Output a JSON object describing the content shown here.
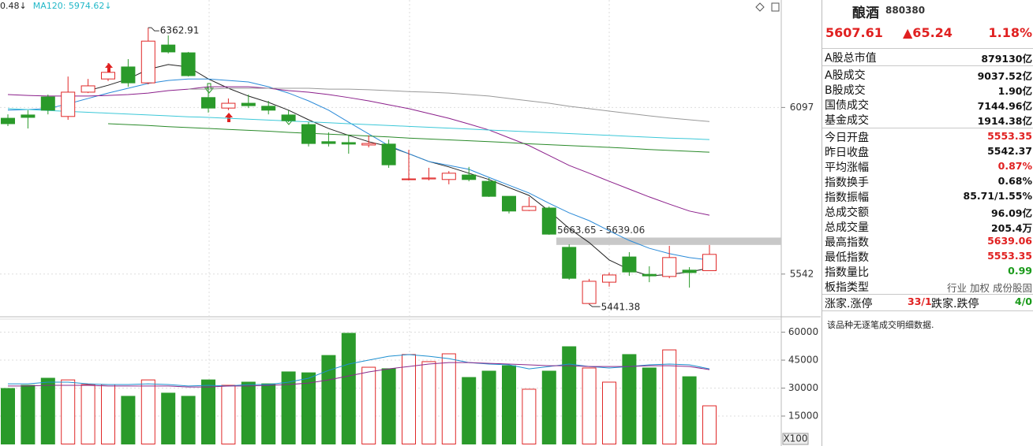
{
  "chart_data": [
    {
      "type": "candlestick",
      "legend_texts": [
        {
          "text": "0.48↓",
          "color": "#222222"
        },
        {
          "text": "MA120: 5974.62↓",
          "color": "#22b8c8"
        }
      ],
      "ylim": [
        5405,
        6455
      ],
      "yticks": [
        6097,
        5542
      ],
      "grid": true,
      "up_color": "#e02828",
      "down_color": "#2a9a2a",
      "candles": [
        {
          "open": 6061,
          "high": 6074,
          "low": 6035,
          "close": 6043
        },
        {
          "open": 6072,
          "high": 6088,
          "low": 6027,
          "close": 6064
        },
        {
          "open": 6132,
          "high": 6140,
          "low": 6074,
          "close": 6088
        },
        {
          "open": 6067,
          "high": 6200,
          "low": 6056,
          "close": 6148
        },
        {
          "open": 6148,
          "high": 6192,
          "low": 6145,
          "close": 6169
        },
        {
          "open": 6192,
          "high": 6245,
          "low": 6185,
          "close": 6214
        },
        {
          "open": 6232,
          "high": 6258,
          "low": 6166,
          "close": 6179
        },
        {
          "open": 6179,
          "high": 6362.91,
          "low": 6174,
          "close": 6318
        },
        {
          "open": 6305,
          "high": 6337,
          "low": 6277,
          "close": 6282
        },
        {
          "open": 6279,
          "high": 6282,
          "low": 6200,
          "close": 6203
        },
        {
          "open": 6130,
          "high": 6166,
          "low": 6080,
          "close": 6095
        },
        {
          "open": 6095,
          "high": 6127,
          "low": 6088,
          "close": 6111
        },
        {
          "open": 6111,
          "high": 6140,
          "low": 6095,
          "close": 6103
        },
        {
          "open": 6101,
          "high": 6119,
          "low": 6074,
          "close": 6088
        },
        {
          "open": 6072,
          "high": 6088,
          "low": 6048,
          "close": 6053
        },
        {
          "open": 6040,
          "high": 6048,
          "low": 5967,
          "close": 5977
        },
        {
          "open": 5983,
          "high": 6014,
          "low": 5967,
          "close": 5977
        },
        {
          "open": 5980,
          "high": 6004,
          "low": 5943,
          "close": 5975
        },
        {
          "open": 5972,
          "high": 6004,
          "low": 5964,
          "close": 5977
        },
        {
          "open": 5975,
          "high": 5990,
          "low": 5896,
          "close": 5906
        },
        {
          "open": 5857,
          "high": 5956,
          "low": 5854,
          "close": 5859
        },
        {
          "open": 5859,
          "high": 5896,
          "low": 5854,
          "close": 5862
        },
        {
          "open": 5857,
          "high": 5885,
          "low": 5841,
          "close": 5878
        },
        {
          "open": 5872,
          "high": 5899,
          "low": 5851,
          "close": 5857
        },
        {
          "open": 5851,
          "high": 5862,
          "low": 5799,
          "close": 5801
        },
        {
          "open": 5801,
          "high": 5801,
          "low": 5744,
          "close": 5752
        },
        {
          "open": 5754,
          "high": 5799,
          "low": 5752,
          "close": 5767
        },
        {
          "open": 5762,
          "high": 5767,
          "low": 5673,
          "close": 5675
        },
        {
          "open": 5631,
          "high": 5641,
          "low": 5523,
          "close": 5528
        },
        {
          "open": 5444,
          "high": 5526,
          "low": 5441.38,
          "close": 5518
        },
        {
          "open": 5515,
          "high": 5547,
          "low": 5500,
          "close": 5539
        },
        {
          "open": 5599,
          "high": 5615,
          "low": 5536,
          "close": 5549
        },
        {
          "open": 5541,
          "high": 5568,
          "low": 5515,
          "close": 5536
        },
        {
          "open": 5534,
          "high": 5636,
          "low": 5528,
          "close": 5597
        },
        {
          "open": 5555,
          "high": 5565,
          "low": 5497,
          "close": 5547
        },
        {
          "open": 5553.35,
          "high": 5639.06,
          "low": 5553.35,
          "close": 5607.61
        }
      ],
      "lines": [
        {
          "color": "#222222",
          "values": [
            null,
            null,
            null,
            null,
            6153,
            6171,
            6192,
            6224,
            6240,
            6232,
            6192,
            6161,
            6135,
            6114,
            6088,
            6056,
            6027,
            6004,
            5983,
            5967,
            5943,
            5917,
            5899,
            5878,
            5857,
            5830,
            5804,
            5752,
            5694,
            5647,
            5589,
            5557,
            5536,
            5541,
            5549,
            5562
          ]
        },
        {
          "color": "#2a8ad8",
          "values": [
            6088,
            6090,
            6093,
            6109,
            6127,
            6145,
            6161,
            6177,
            6187,
            6192,
            6192,
            6187,
            6182,
            6166,
            6145,
            6119,
            6088,
            6048,
            6009,
            5970,
            5943,
            5917,
            5904,
            5891,
            5864,
            5838,
            5812,
            5778,
            5746,
            5720,
            5686,
            5654,
            5628,
            5610,
            5597,
            5589
          ]
        },
        {
          "color": "#8b1f8b",
          "values": [
            6140,
            6137,
            6135,
            6135,
            6135,
            6137,
            6140,
            6145,
            6153,
            6158,
            6166,
            6166,
            6166,
            6161,
            6153,
            6148,
            6140,
            6130,
            6119,
            6106,
            6093,
            6077,
            6061,
            6042,
            6022,
            5996,
            5970,
            5937,
            5904,
            5878,
            5851,
            5825,
            5799,
            5775,
            5752,
            5738
          ]
        },
        {
          "color": "#999999",
          "values": [
            null,
            null,
            null,
            null,
            null,
            null,
            null,
            null,
            null,
            6158,
            6158,
            6161,
            6161,
            6161,
            6161,
            6161,
            6158,
            6158,
            6156,
            6153,
            6150,
            6148,
            6145,
            6140,
            6135,
            6127,
            6119,
            6111,
            6101,
            6093,
            6085,
            6077,
            6069,
            6062,
            6056,
            6050
          ]
        },
        {
          "color": "#3cc8d8",
          "values": [
            6093,
            6090,
            6087,
            6084,
            6081,
            6078,
            6075,
            6072,
            6069,
            6066,
            6064,
            6061,
            6058,
            6055,
            6052,
            6049,
            6046,
            6043,
            6040,
            6037,
            6034,
            6031,
            6028,
            6025,
            6022,
            6019,
            6016,
            6013,
            6010,
            6007,
            6004,
            6001,
            5998,
            5995,
            5993,
            5990
          ]
        },
        {
          "color": "#2a8a2a",
          "values": [
            null,
            null,
            null,
            null,
            null,
            6043,
            6040,
            6037,
            6033,
            6030,
            6027,
            6024,
            6021,
            6018,
            6014,
            6011,
            6008,
            6005,
            6002,
            5999,
            5995,
            5992,
            5989,
            5986,
            5983,
            5980,
            5976,
            5973,
            5970,
            5967,
            5964,
            5961,
            5957,
            5954,
            5951,
            5948
          ]
        }
      ],
      "range_label": "5663.65 - 5639.06",
      "range": [
        5663.65,
        5639.06
      ],
      "range_color": "#c8c8c8"
    },
    {
      "type": "bar",
      "unit_label": "X100",
      "ylim": [
        0,
        67000
      ],
      "yticks": [
        60000,
        45000,
        30000,
        15000
      ],
      "grid": true,
      "values": [
        29800,
        31500,
        35300,
        34400,
        31900,
        31900,
        25600,
        34400,
        27300,
        25600,
        34400,
        31500,
        33200,
        32300,
        38700,
        38200,
        47500,
        59400,
        41200,
        40400,
        48000,
        44200,
        48400,
        35700,
        39100,
        42000,
        29400,
        39100,
        52200,
        40800,
        33200,
        48000,
        40800,
        50500,
        36100,
        20500
      ],
      "lines": [
        {
          "color": "#1e90d0",
          "values": [
            32300,
            32300,
            33200,
            33200,
            32300,
            31900,
            31900,
            32300,
            31900,
            31100,
            31500,
            31100,
            31900,
            31900,
            33200,
            35300,
            39500,
            42900,
            45000,
            47100,
            48000,
            47100,
            45800,
            43700,
            42900,
            42500,
            40300,
            41600,
            42900,
            41600,
            40800,
            41600,
            42500,
            42900,
            42500,
            40300
          ]
        },
        {
          "color": "#8a2a8a",
          "values": [
            31100,
            31100,
            31500,
            31500,
            31500,
            31100,
            31100,
            31100,
            31100,
            30600,
            30600,
            31100,
            31100,
            31500,
            31900,
            32700,
            34400,
            36500,
            38700,
            40300,
            41600,
            42900,
            43700,
            43700,
            43300,
            42900,
            42500,
            42000,
            42000,
            41600,
            41600,
            41600,
            42000,
            42000,
            41600,
            39900
          ]
        }
      ]
    }
  ],
  "panel": {
    "name": "酿酒",
    "code": "880380",
    "price": "5607.61",
    "change": "▲65.24",
    "change_pct": "1.18%",
    "price_color": "#e02020",
    "rows": [
      {
        "label": "A股总市值",
        "value": "879130亿",
        "color": "#111111"
      },
      {
        "label": "A股成交",
        "value": "9037.52亿",
        "color": "#111111"
      },
      {
        "label": "B股成交",
        "value": "1.90亿",
        "color": "#111111"
      },
      {
        "label": "国债成交",
        "value": "7144.96亿",
        "color": "#111111"
      },
      {
        "label": "基金成交",
        "value": "1914.38亿",
        "color": "#111111"
      },
      {
        "label": "今日开盘",
        "value": "5553.35",
        "color": "#e02020"
      },
      {
        "label": "昨日收盘",
        "value": "5542.37",
        "color": "#111111"
      },
      {
        "label": "平均涨幅",
        "value": "0.87%",
        "color": "#e02020"
      },
      {
        "label": "指数换手",
        "value": "0.68%",
        "color": "#111111"
      },
      {
        "label": "指数振幅",
        "value": "85.71/1.55%",
        "color": "#111111"
      },
      {
        "label": "总成交额",
        "value": "96.09亿",
        "color": "#111111"
      },
      {
        "label": "总成交量",
        "value": "205.4万",
        "color": "#111111"
      },
      {
        "label": "最高指数",
        "value": "5639.06",
        "color": "#e02020"
      },
      {
        "label": "最低指数",
        "value": "5553.35",
        "color": "#e02020"
      },
      {
        "label": "指数量比",
        "value": "0.99",
        "color": "#1a9a1a"
      },
      {
        "label": "板指类型",
        "value": "行业 加权 成份股固",
        "color": "#555555"
      }
    ],
    "last_row": [
      "涨家.涨停",
      "33/1",
      "跌家.跌停",
      "4/0"
    ],
    "note": "该品种无逐笔成交明细数据."
  }
}
